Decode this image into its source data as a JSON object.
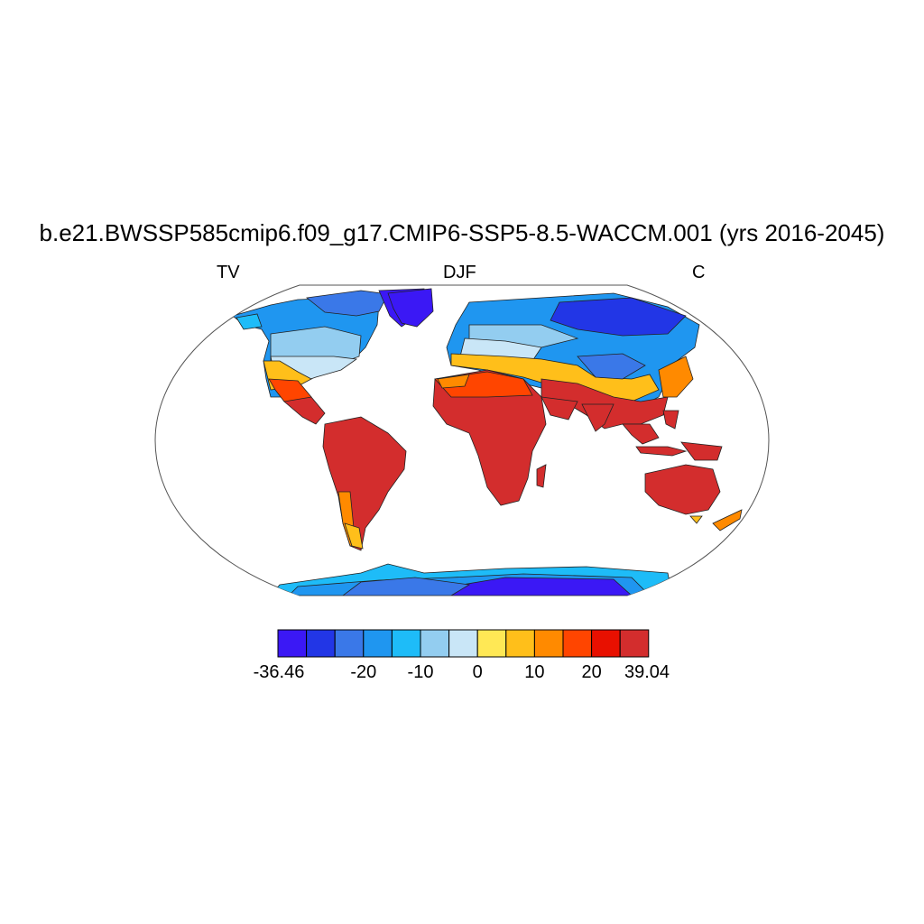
{
  "title": "b.e21.BWSSP585cmip6.f09_g17.CMIP6-SSP5-8.5-WACCM.001 (yrs 2016-2045)",
  "subtitle_left": "TV",
  "subtitle_center": "DJF",
  "subtitle_right": "C",
  "colorbar": {
    "colors": [
      "#3b18f5",
      "#2236e6",
      "#3a78e8",
      "#1f96f0",
      "#1ebcf8",
      "#93cdf0",
      "#c9e6f7",
      "#ffe855",
      "#ffbf1a",
      "#ff8a00",
      "#ff4500",
      "#e81000",
      "#d32d2d"
    ],
    "tick_labels": [
      "-36.46",
      "-20",
      "-10",
      "0",
      "10",
      "20",
      "39.04"
    ]
  },
  "map": {
    "projection": "Robinson",
    "field": "DJF mean temperature"
  }
}
